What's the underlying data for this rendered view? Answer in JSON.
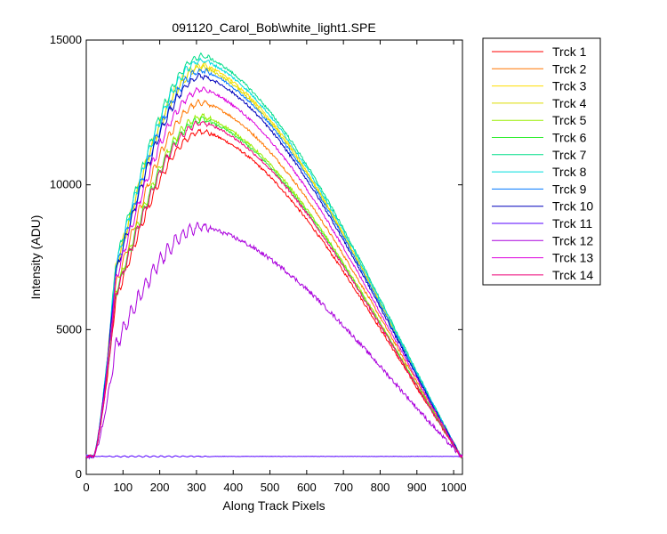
{
  "chart_data": {
    "type": "line",
    "title": "091120_Carol_Bob\\white_light1.SPE",
    "xlabel": "Along Track Pixels",
    "ylabel": "Intensity (ADU)",
    "xlim": [
      0,
      1024
    ],
    "ylim": [
      0,
      15000
    ],
    "xticks": [
      0,
      100,
      200,
      300,
      400,
      500,
      600,
      700,
      800,
      900,
      1000
    ],
    "yticks": [
      0,
      5000,
      10000,
      15000
    ],
    "grid": false,
    "legend_position": "outside-right",
    "baseline_level": 620,
    "series": [
      {
        "name": "Trck 1",
        "color": "#ff0000",
        "peak": 11850,
        "noise": 1.0
      },
      {
        "name": "Trck 2",
        "color": "#ff7700",
        "peak": 12850,
        "noise": 1.0
      },
      {
        "name": "Trck 3",
        "color": "#ffdd00",
        "peak": 14150,
        "noise": 1.0
      },
      {
        "name": "Trck 4",
        "color": "#dddd00",
        "peak": 14050,
        "noise": 1.0
      },
      {
        "name": "Trck 5",
        "color": "#99ee00",
        "peak": 12350,
        "noise": 1.0
      },
      {
        "name": "Trck 6",
        "color": "#33ee33",
        "peak": 12250,
        "noise": 1.0
      },
      {
        "name": "Trck 7",
        "color": "#00dd88",
        "peak": 14450,
        "noise": 1.0
      },
      {
        "name": "Trck 8",
        "color": "#00dddd",
        "peak": 14300,
        "noise": 1.0
      },
      {
        "name": "Trck 9",
        "color": "#0077ff",
        "peak": 13950,
        "noise": 1.0
      },
      {
        "name": "Trck 10",
        "color": "#0000bb",
        "peak": 13750,
        "noise": 1.0
      },
      {
        "name": "Trck 11",
        "color": "#5500ff",
        "peak": 620,
        "noise": 0.15
      },
      {
        "name": "Trck 12",
        "color": "#aa00dd",
        "peak": 8550,
        "noise": 1.6
      },
      {
        "name": "Trck 13",
        "color": "#dd00dd",
        "peak": 13300,
        "noise": 1.0
      },
      {
        "name": "Trck 14",
        "color": "#ee0077",
        "peak": 12150,
        "noise": 1.0
      }
    ]
  }
}
